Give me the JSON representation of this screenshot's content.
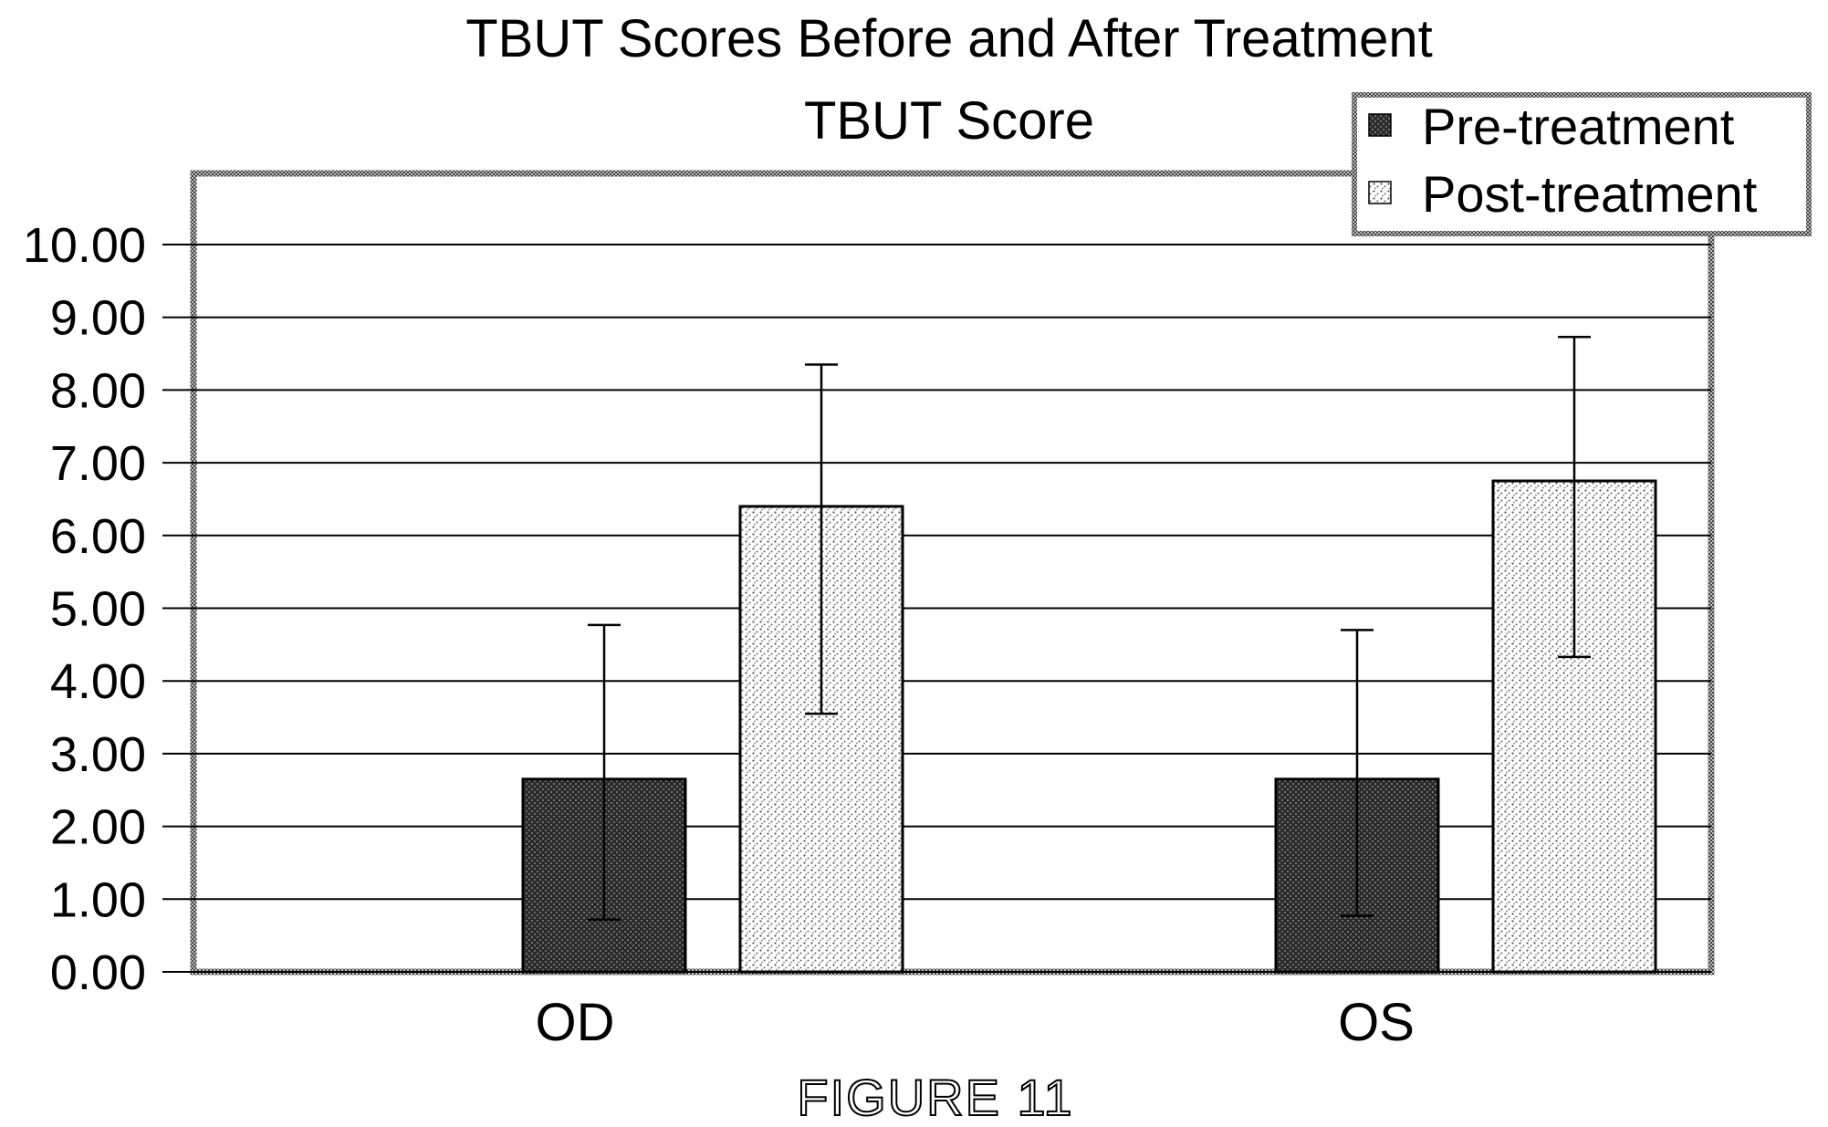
{
  "chart_data": {
    "type": "bar",
    "title": "TBUT Scores Before and After Treatment",
    "subtitle": "TBUT Score",
    "categories": [
      "OD",
      "OS"
    ],
    "series": [
      {
        "name": "Pre-treatment",
        "values": [
          2.65,
          2.65
        ],
        "error_low": [
          0.72,
          0.77
        ],
        "error_high": [
          4.77,
          4.7
        ],
        "pattern": "dark-crosshatch"
      },
      {
        "name": "Post-treatment",
        "values": [
          6.4,
          6.75
        ],
        "error_low": [
          3.55,
          4.33
        ],
        "error_high": [
          8.35,
          8.73
        ],
        "pattern": "light-stipple"
      }
    ],
    "ylim": [
      0,
      10
    ],
    "yticks": [
      "0.00",
      "1.00",
      "2.00",
      "3.00",
      "4.00",
      "5.00",
      "6.00",
      "7.00",
      "8.00",
      "9.00",
      "10.00"
    ],
    "grid": true,
    "legend_position": "top-right",
    "xlabel": "",
    "ylabel": ""
  },
  "caption": "FIGURE 11"
}
